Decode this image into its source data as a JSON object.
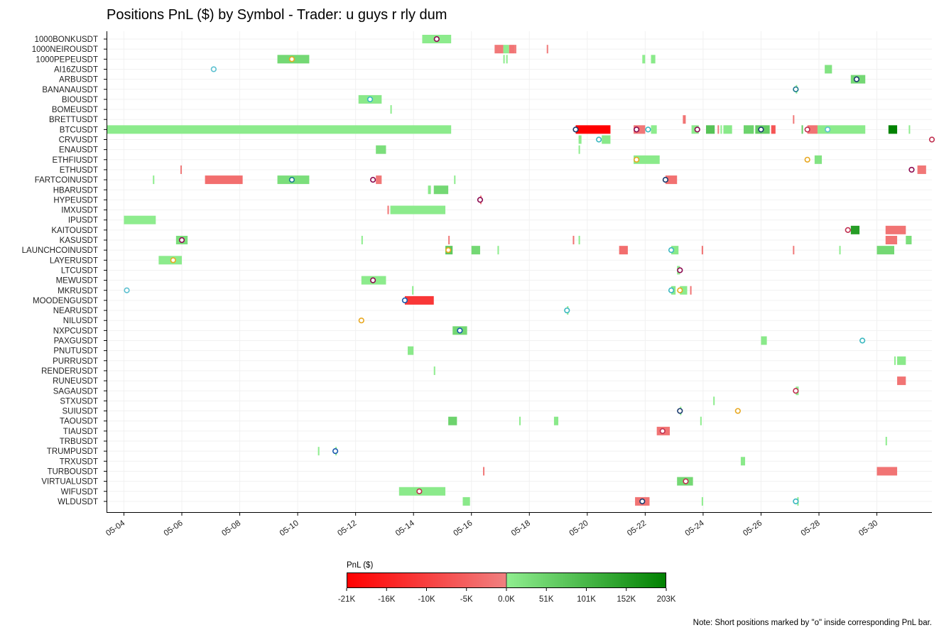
{
  "chart_data": {
    "type": "timeline",
    "title": "Positions PnL ($) by Symbol - Trader: u guys r rly dum",
    "note": "Note: Short positions marked by \"o\" inside corresponding PnL bar.",
    "x_ticks": [
      "05-04",
      "05-06",
      "05-08",
      "05-10",
      "05-12",
      "05-14",
      "05-16",
      "05-18",
      "05-20",
      "05-22",
      "05-24",
      "05-26",
      "05-28",
      "05-30"
    ],
    "x_range_days": [
      3.4,
      31.9
    ],
    "symbols": [
      "1000BONKUSDT",
      "1000NEIROUSDT",
      "1000PEPEUSDT",
      "AI16ZUSDT",
      "ARBUSDT",
      "BANANAUSDT",
      "BIOUSDT",
      "BOMEUSDT",
      "BRETTUSDT",
      "BTCUSDT",
      "CRVUSDT",
      "ENAUSDT",
      "ETHFIUSDT",
      "ETHUSDT",
      "FARTCOINUSDT",
      "HBARUSDT",
      "HYPEUSDT",
      "IMXUSDT",
      "IPUSDT",
      "KAITOUSDT",
      "KASUSDT",
      "LAUNCHCOINUSDT",
      "LAYERUSDT",
      "LTCUSDT",
      "MEWUSDT",
      "MKRUSDT",
      "MOODENGUSDT",
      "NEARUSDT",
      "NILUSDT",
      "NXPCUSDT",
      "PAXGUSDT",
      "PNUTUSDT",
      "PURRUSDT",
      "RENDERUSDT",
      "RUNEUSDT",
      "SAGAUSDT",
      "STXUSDT",
      "SUIUSDT",
      "TAOUSDT",
      "TIAUSDT",
      "TRBUSDT",
      "TRUMPUSDT",
      "TRXUSDT",
      "TURBOUSDT",
      "VIRTUALUSDT",
      "WIFUSDT",
      "WLDUSDT"
    ],
    "colorbar": {
      "label": "PnL ($)",
      "ticks": [
        "-21K",
        "-16K",
        "-10K",
        "-5K",
        "0.0K",
        "51K",
        "101K",
        "152K",
        "203K"
      ],
      "neg_colors": [
        "#ff0000",
        "#f08080"
      ],
      "pos_colors": [
        "#90ee90",
        "#008000"
      ]
    },
    "bars": [
      {
        "sym": "1000BONKUSDT",
        "start": 14.3,
        "end": 15.3,
        "pnl": 6000
      },
      {
        "sym": "1000NEIROUSDT",
        "start": 16.8,
        "end": 17.1,
        "pnl": -1200
      },
      {
        "sym": "1000NEIROUSDT",
        "start": 17.1,
        "end": 17.3,
        "pnl": 800
      },
      {
        "sym": "1000NEIROUSDT",
        "start": 17.3,
        "end": 17.5,
        "pnl": -2000
      },
      {
        "sym": "1000NEIROUSDT",
        "start": 17.5,
        "end": 17.55,
        "pnl": -800
      },
      {
        "sym": "1000NEIROUSDT",
        "start": 18.6,
        "end": 18.65,
        "pnl": -700
      },
      {
        "sym": "1000PEPEUSDT",
        "start": 9.3,
        "end": 10.4,
        "pnl": 40000
      },
      {
        "sym": "1000PEPEUSDT",
        "start": 17.1,
        "end": 17.15,
        "pnl": 1000
      },
      {
        "sym": "1000PEPEUSDT",
        "start": 17.2,
        "end": 17.25,
        "pnl": 1000
      },
      {
        "sym": "1000PEPEUSDT",
        "start": 21.9,
        "end": 22.0,
        "pnl": 2000
      },
      {
        "sym": "1000PEPEUSDT",
        "start": 22.2,
        "end": 22.35,
        "pnl": 8000
      },
      {
        "sym": "ARBUSDT",
        "start": 29.1,
        "end": 29.6,
        "pnl": 40000
      },
      {
        "sym": "AI16ZUSDT",
        "start": 28.2,
        "end": 28.45,
        "pnl": 20000
      },
      {
        "sym": "BANANAUSDT",
        "start": 27.2,
        "end": 27.25,
        "pnl": 1000
      },
      {
        "sym": "BIOUSDT",
        "start": 12.1,
        "end": 12.9,
        "pnl": 9000
      },
      {
        "sym": "BOMEUSDT",
        "start": 13.2,
        "end": 13.25,
        "pnl": 1000
      },
      {
        "sym": "BRETTUSDT",
        "start": 23.3,
        "end": 23.4,
        "pnl": -2000
      },
      {
        "sym": "BRETTUSDT",
        "start": 27.1,
        "end": 27.15,
        "pnl": -800
      },
      {
        "sym": "BTCUSDT",
        "start": 3.4,
        "end": 15.3,
        "pnl": 5000
      },
      {
        "sym": "BTCUSDT",
        "start": 19.6,
        "end": 20.8,
        "pnl": -21000
      },
      {
        "sym": "BTCUSDT",
        "start": 21.6,
        "end": 22.0,
        "pnl": -1500
      },
      {
        "sym": "BTCUSDT",
        "start": 22.2,
        "end": 22.4,
        "pnl": 4000
      },
      {
        "sym": "BTCUSDT",
        "start": 23.6,
        "end": 23.85,
        "pnl": 5000
      },
      {
        "sym": "BTCUSDT",
        "start": 24.1,
        "end": 24.4,
        "pnl": 80000
      },
      {
        "sym": "BTCUSDT",
        "start": 24.5,
        "end": 24.55,
        "pnl": -600
      },
      {
        "sym": "BTCUSDT",
        "start": 24.6,
        "end": 24.65,
        "pnl": 3000
      },
      {
        "sym": "BTCUSDT",
        "start": 24.7,
        "end": 25.0,
        "pnl": 10000
      },
      {
        "sym": "BTCUSDT",
        "start": 25.4,
        "end": 25.75,
        "pnl": 50000
      },
      {
        "sym": "BTCUSDT",
        "start": 25.8,
        "end": 26.3,
        "pnl": 60000
      },
      {
        "sym": "BTCUSDT",
        "start": 26.35,
        "end": 26.5,
        "pnl": -7000
      },
      {
        "sym": "BTCUSDT",
        "start": 27.4,
        "end": 27.45,
        "pnl": 60000
      },
      {
        "sym": "BTCUSDT",
        "start": 27.6,
        "end": 27.95,
        "pnl": -2000
      },
      {
        "sym": "BTCUSDT",
        "start": 27.95,
        "end": 29.6,
        "pnl": 6000
      },
      {
        "sym": "BTCUSDT",
        "start": 30.4,
        "end": 30.7,
        "pnl": 200000
      },
      {
        "sym": "BTCUSDT",
        "start": 31.1,
        "end": 31.15,
        "pnl": 1000
      },
      {
        "sym": "CRVUSDT",
        "start": 19.7,
        "end": 19.8,
        "pnl": 3000
      },
      {
        "sym": "CRVUSDT",
        "start": 20.5,
        "end": 20.8,
        "pnl": 10000
      },
      {
        "sym": "ENAUSDT",
        "start": 12.7,
        "end": 13.05,
        "pnl": 30000
      },
      {
        "sym": "ENAUSDT",
        "start": 19.7,
        "end": 19.75,
        "pnl": 2000
      },
      {
        "sym": "ETHFIUSDT",
        "start": 21.6,
        "end": 22.5,
        "pnl": 8000
      },
      {
        "sym": "ETHFIUSDT",
        "start": 27.85,
        "end": 28.1,
        "pnl": 20000
      },
      {
        "sym": "ETHUSDT",
        "start": 5.95,
        "end": 6.0,
        "pnl": -600
      },
      {
        "sym": "ETHUSDT",
        "start": 31.4,
        "end": 31.7,
        "pnl": -1500
      },
      {
        "sym": "FARTCOINUSDT",
        "start": 5.0,
        "end": 5.05,
        "pnl": 1000
      },
      {
        "sym": "FARTCOINUSDT",
        "start": 6.8,
        "end": 8.1,
        "pnl": -3000
      },
      {
        "sym": "FARTCOINUSDT",
        "start": 9.3,
        "end": 10.4,
        "pnl": 30000
      },
      {
        "sym": "FARTCOINUSDT",
        "start": 12.7,
        "end": 12.9,
        "pnl": -1500
      },
      {
        "sym": "FARTCOINUSDT",
        "start": 15.4,
        "end": 15.45,
        "pnl": 1000
      },
      {
        "sym": "FARTCOINUSDT",
        "start": 22.7,
        "end": 23.1,
        "pnl": -2500
      },
      {
        "sym": "HBARUSDT",
        "start": 14.5,
        "end": 14.6,
        "pnl": 9000
      },
      {
        "sym": "HBARUSDT",
        "start": 14.7,
        "end": 15.2,
        "pnl": 40000
      },
      {
        "sym": "HYPEUSDT",
        "start": 16.3,
        "end": 16.35,
        "pnl": -700
      },
      {
        "sym": "IMXUSDT",
        "start": 13.1,
        "end": 13.15,
        "pnl": -1500
      },
      {
        "sym": "IMXUSDT",
        "start": 13.2,
        "end": 15.1,
        "pnl": 5000
      },
      {
        "sym": "IPUSDT",
        "start": 4.0,
        "end": 5.1,
        "pnl": 3000
      },
      {
        "sym": "KAITOUSDT",
        "start": 29.1,
        "end": 29.4,
        "pnl": 150000
      },
      {
        "sym": "KAITOUSDT",
        "start": 30.3,
        "end": 31.0,
        "pnl": -2000
      },
      {
        "sym": "KASUSDT",
        "start": 5.8,
        "end": 6.2,
        "pnl": 30000
      },
      {
        "sym": "KASUSDT",
        "start": 12.2,
        "end": 12.25,
        "pnl": 1000
      },
      {
        "sym": "KASUSDT",
        "start": 15.2,
        "end": 15.25,
        "pnl": -900
      },
      {
        "sym": "KASUSDT",
        "start": 19.5,
        "end": 19.55,
        "pnl": -2000
      },
      {
        "sym": "KASUSDT",
        "start": 19.7,
        "end": 19.75,
        "pnl": 1000
      },
      {
        "sym": "KASUSDT",
        "start": 30.3,
        "end": 30.7,
        "pnl": -2000
      },
      {
        "sym": "KASUSDT",
        "start": 31.0,
        "end": 31.2,
        "pnl": 30000
      },
      {
        "sym": "LAUNCHCOINUSDT",
        "start": 15.1,
        "end": 15.35,
        "pnl": 70000
      },
      {
        "sym": "LAUNCHCOINUSDT",
        "start": 16.0,
        "end": 16.3,
        "pnl": 40000
      },
      {
        "sym": "LAUNCHCOINUSDT",
        "start": 16.9,
        "end": 16.95,
        "pnl": 1000
      },
      {
        "sym": "LAUNCHCOINUSDT",
        "start": 21.1,
        "end": 21.4,
        "pnl": -3000
      },
      {
        "sym": "LAUNCHCOINUSDT",
        "start": 22.9,
        "end": 23.15,
        "pnl": 10000
      },
      {
        "sym": "LAUNCHCOINUSDT",
        "start": 23.95,
        "end": 24.0,
        "pnl": -2000
      },
      {
        "sym": "LAUNCHCOINUSDT",
        "start": 27.1,
        "end": 27.15,
        "pnl": -700
      },
      {
        "sym": "LAUNCHCOINUSDT",
        "start": 28.7,
        "end": 28.75,
        "pnl": 1000
      },
      {
        "sym": "LAUNCHCOINUSDT",
        "start": 30.0,
        "end": 30.6,
        "pnl": 40000
      },
      {
        "sym": "LAYERUSDT",
        "start": 5.2,
        "end": 6.0,
        "pnl": 5000
      },
      {
        "sym": "LTCUSDT",
        "start": 23.1,
        "end": 23.2,
        "pnl": 2000
      },
      {
        "sym": "MEWUSDT",
        "start": 12.2,
        "end": 13.05,
        "pnl": 6000
      },
      {
        "sym": "MKRUSDT",
        "start": 13.95,
        "end": 14.0,
        "pnl": 1000
      },
      {
        "sym": "MKRUSDT",
        "start": 22.9,
        "end": 23.05,
        "pnl": 8000
      },
      {
        "sym": "MKRUSDT",
        "start": 23.2,
        "end": 23.45,
        "pnl": 6000
      },
      {
        "sym": "MKRUSDT",
        "start": 23.55,
        "end": 23.6,
        "pnl": -1500
      },
      {
        "sym": "MOODENGUSDT",
        "start": 13.7,
        "end": 14.7,
        "pnl": -12000
      },
      {
        "sym": "NEARUSDT",
        "start": 19.3,
        "end": 19.35,
        "pnl": 1000
      },
      {
        "sym": "NXPCUSDT",
        "start": 15.35,
        "end": 15.85,
        "pnl": 40000
      },
      {
        "sym": "PAXGUSDT",
        "start": 26.0,
        "end": 26.2,
        "pnl": 10000
      },
      {
        "sym": "PNUTUSDT",
        "start": 13.8,
        "end": 14.0,
        "pnl": 9000
      },
      {
        "sym": "PURRUSDT",
        "start": 30.6,
        "end": 30.65,
        "pnl": 1000
      },
      {
        "sym": "PURRUSDT",
        "start": 30.7,
        "end": 31.0,
        "pnl": 9000
      },
      {
        "sym": "RENDERUSDT",
        "start": 14.7,
        "end": 14.75,
        "pnl": 1000
      },
      {
        "sym": "RUNEUSDT",
        "start": 30.7,
        "end": 31.0,
        "pnl": -2000
      },
      {
        "sym": "SAGAUSDT",
        "start": 27.2,
        "end": 27.3,
        "pnl": 2000
      },
      {
        "sym": "STXUSDT",
        "start": 24.35,
        "end": 24.4,
        "pnl": 1000
      },
      {
        "sym": "SUIUSDT",
        "start": 23.2,
        "end": 23.25,
        "pnl": 1000
      },
      {
        "sym": "TAOUSDT",
        "start": 15.2,
        "end": 15.5,
        "pnl": 50000
      },
      {
        "sym": "TAOUSDT",
        "start": 17.65,
        "end": 17.7,
        "pnl": 1000
      },
      {
        "sym": "TAOUSDT",
        "start": 18.85,
        "end": 19.0,
        "pnl": 9000
      },
      {
        "sym": "TAOUSDT",
        "start": 23.9,
        "end": 23.95,
        "pnl": 1000
      },
      {
        "sym": "TIAUSDT",
        "start": 22.4,
        "end": 22.85,
        "pnl": -2000
      },
      {
        "sym": "TRBUSDT",
        "start": 30.3,
        "end": 30.35,
        "pnl": 1000
      },
      {
        "sym": "TRUMPUSDT",
        "start": 10.7,
        "end": 10.75,
        "pnl": 1000
      },
      {
        "sym": "TRUMPUSDT",
        "start": 11.3,
        "end": 11.35,
        "pnl": 1000
      },
      {
        "sym": "TRXUSDT",
        "start": 25.3,
        "end": 25.45,
        "pnl": 9000
      },
      {
        "sym": "TURBOUSDT",
        "start": 16.4,
        "end": 16.45,
        "pnl": -900
      },
      {
        "sym": "TURBOUSDT",
        "start": 30.0,
        "end": 30.7,
        "pnl": -2000
      },
      {
        "sym": "VIRTUALUSDT",
        "start": 23.1,
        "end": 23.65,
        "pnl": 40000
      },
      {
        "sym": "WIFUSDT",
        "start": 13.5,
        "end": 15.1,
        "pnl": 7000
      },
      {
        "sym": "WLDUSDT",
        "start": 15.7,
        "end": 15.95,
        "pnl": 9000
      },
      {
        "sym": "WLDUSDT",
        "start": 21.65,
        "end": 22.15,
        "pnl": -2000
      },
      {
        "sym": "WLDUSDT",
        "start": 23.95,
        "end": 24.0,
        "pnl": 1000
      },
      {
        "sym": "WLDUSDT",
        "start": 27.25,
        "end": 27.3,
        "pnl": 1000
      }
    ],
    "markers": [
      {
        "sym": "1000BONKUSDT",
        "t": 14.8,
        "color": "#8b0a50"
      },
      {
        "sym": "1000PEPEUSDT",
        "t": 9.8,
        "color": "#e8a820"
      },
      {
        "sym": "AI16ZUSDT",
        "t": 7.1,
        "color": "#5bc0d0"
      },
      {
        "sym": "ARBUSDT",
        "t": 29.3,
        "color": "#1a3a6e"
      },
      {
        "sym": "BANANAUSDT",
        "t": 27.2,
        "color": "#1a7a8e"
      },
      {
        "sym": "BIOUSDT",
        "t": 12.5,
        "color": "#3ab8c0"
      },
      {
        "sym": "BTCUSDT",
        "t": 19.6,
        "color": "#1a3a6e"
      },
      {
        "sym": "BTCUSDT",
        "t": 21.7,
        "color": "#8b0a50"
      },
      {
        "sym": "BTCUSDT",
        "t": 22.1,
        "color": "#3ab8c0"
      },
      {
        "sym": "BTCUSDT",
        "t": 23.8,
        "color": "#8b0a50"
      },
      {
        "sym": "BTCUSDT",
        "t": 26.0,
        "color": "#1a3a6e"
      },
      {
        "sym": "BTCUSDT",
        "t": 27.6,
        "color": "#c03050"
      },
      {
        "sym": "BTCUSDT",
        "t": 28.3,
        "color": "#5bc0d0"
      },
      {
        "sym": "CRVUSDT",
        "t": 20.4,
        "color": "#3ab8c0"
      },
      {
        "sym": "CRVUSDT",
        "t": 31.9,
        "color": "#c03050"
      },
      {
        "sym": "ETHFIUSDT",
        "t": 21.7,
        "color": "#e8a820"
      },
      {
        "sym": "ETHFIUSDT",
        "t": 27.6,
        "color": "#e8a820"
      },
      {
        "sym": "ETHUSDT",
        "t": 31.2,
        "color": "#8b0a50"
      },
      {
        "sym": "FARTCOINUSDT",
        "t": 9.8,
        "color": "#1a7a8e"
      },
      {
        "sym": "FARTCOINUSDT",
        "t": 12.6,
        "color": "#8b0a50"
      },
      {
        "sym": "FARTCOINUSDT",
        "t": 22.7,
        "color": "#1a3a6e"
      },
      {
        "sym": "HYPEUSDT",
        "t": 16.3,
        "color": "#8b0a50"
      },
      {
        "sym": "KAITOUSDT",
        "t": 29.0,
        "color": "#c03050"
      },
      {
        "sym": "KASUSDT",
        "t": 6.0,
        "color": "#8b0a50"
      },
      {
        "sym": "LAUNCHCOINUSDT",
        "t": 15.2,
        "color": "#e8a820"
      },
      {
        "sym": "LAUNCHCOINUSDT",
        "t": 22.9,
        "color": "#3ab8c0"
      },
      {
        "sym": "LAYERUSDT",
        "t": 5.7,
        "color": "#e8a820"
      },
      {
        "sym": "LTCUSDT",
        "t": 23.2,
        "color": "#8b0a50"
      },
      {
        "sym": "MEWUSDT",
        "t": 12.6,
        "color": "#8b0a50"
      },
      {
        "sym": "MKRUSDT",
        "t": 4.1,
        "color": "#5bc0d0"
      },
      {
        "sym": "MKRUSDT",
        "t": 23.2,
        "color": "#e8a820"
      },
      {
        "sym": "MKRUSDT",
        "t": 22.9,
        "color": "#3ab8c0"
      },
      {
        "sym": "MOODENGUSDT",
        "t": 13.7,
        "color": "#1a5aae"
      },
      {
        "sym": "NEARUSDT",
        "t": 19.3,
        "color": "#3ab8c0"
      },
      {
        "sym": "NILUSDT",
        "t": 12.2,
        "color": "#e8a820"
      },
      {
        "sym": "NXPCUSDT",
        "t": 15.6,
        "color": "#1a5aae"
      },
      {
        "sym": "PAXGUSDT",
        "t": 29.5,
        "color": "#3ab8c0"
      },
      {
        "sym": "SAGAUSDT",
        "t": 27.2,
        "color": "#c03050"
      },
      {
        "sym": "SUIUSDT",
        "t": 23.2,
        "color": "#1a3a6e"
      },
      {
        "sym": "SUIUSDT",
        "t": 25.2,
        "color": "#e8a820"
      },
      {
        "sym": "TIAUSDT",
        "t": 22.6,
        "color": "#c03050"
      },
      {
        "sym": "TRUMPUSDT",
        "t": 11.3,
        "color": "#1a5aae"
      },
      {
        "sym": "VIRTUALUSDT",
        "t": 23.4,
        "color": "#c03050"
      },
      {
        "sym": "WIFUSDT",
        "t": 14.2,
        "color": "#c03050"
      },
      {
        "sym": "WLDUSDT",
        "t": 21.9,
        "color": "#1a3a6e"
      },
      {
        "sym": "WLDUSDT",
        "t": 27.2,
        "color": "#3ab8c0"
      }
    ]
  }
}
